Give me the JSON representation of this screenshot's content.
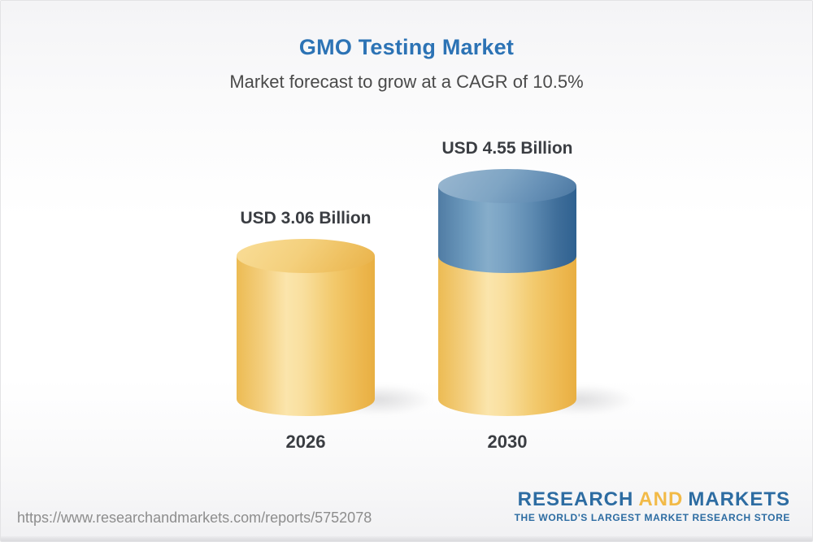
{
  "header": {
    "title": "GMO Testing Market",
    "subtitle": "Market forecast to grow at a CAGR of 10.5%"
  },
  "chart_data": {
    "type": "bar",
    "variant": "3d-cylinder",
    "title": "GMO Testing Market",
    "subtitle": "Market forecast to grow at a CAGR of 10.5%",
    "cagr_percent": 10.5,
    "unit": "USD Billion",
    "categories": [
      "2026",
      "2030"
    ],
    "values": [
      3.06,
      4.55
    ],
    "ylim": [
      0,
      4.55
    ],
    "grid": false,
    "legend": false,
    "xlabel": "",
    "ylabel": "",
    "bars": [
      {
        "category": "2026",
        "value": 3.06,
        "value_label": "USD 3.06 Billion",
        "segments": [
          {
            "value": 3.06,
            "color": "gold"
          }
        ]
      },
      {
        "category": "2030",
        "value": 4.55,
        "value_label": "USD 4.55 Billion",
        "segments": [
          {
            "value": 3.06,
            "color": "gold"
          },
          {
            "value": 1.49,
            "color": "blue"
          }
        ]
      }
    ],
    "colors": {
      "gold": "#F2C566",
      "blue": "#5E8BB3"
    }
  },
  "footer": {
    "url": "https://www.researchandmarkets.com/reports/5752078",
    "logo": {
      "research": "RESEARCH",
      "and": "AND",
      "markets": "MARKETS",
      "tagline": "THE WORLD'S LARGEST MARKET RESEARCH STORE"
    }
  },
  "theme": {
    "title_color": "#2C73B5",
    "subtitle_color": "#4A4A4A",
    "label_color": "#3A3D42",
    "url_color": "#8D8D8D",
    "logo_blue": "#2D6CA2",
    "logo_gold": "#F2BA47"
  }
}
